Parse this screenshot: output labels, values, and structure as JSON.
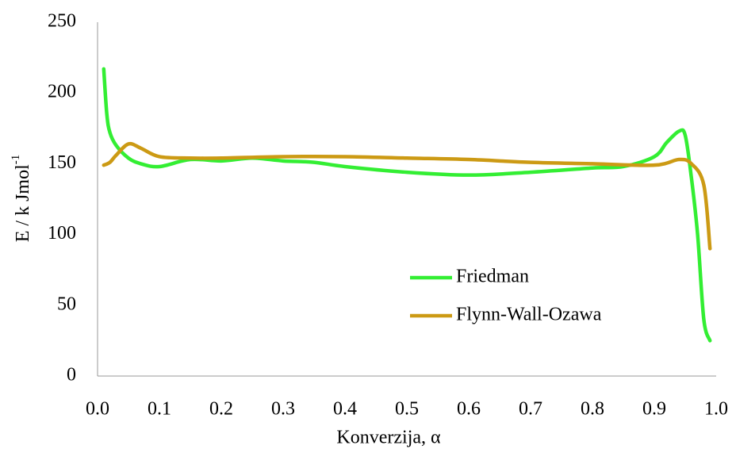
{
  "chart_data": {
    "type": "line",
    "x_label": "Konverzija, α",
    "y_label": "E / k Jmol",
    "y_label_superscript": "-1",
    "xlim": [
      0,
      1.0
    ],
    "xticks": [
      {
        "value": 0,
        "label": "0.0"
      },
      0.1,
      0.2,
      0.3,
      0.4,
      0.5,
      0.6,
      0.7,
      0.8,
      0.9,
      {
        "value": 1,
        "label": "1.0"
      }
    ],
    "ylim": [
      0,
      250
    ],
    "yticks": [
      0,
      50,
      100,
      150,
      200,
      250
    ],
    "grid": false,
    "legend": "lower right",
    "series": [
      {
        "name": "Friedman",
        "color": "#33ee33",
        "x": [
          0.01,
          0.015,
          0.02,
          0.03,
          0.05,
          0.07,
          0.1,
          0.15,
          0.2,
          0.25,
          0.3,
          0.35,
          0.4,
          0.5,
          0.6,
          0.7,
          0.8,
          0.85,
          0.9,
          0.92,
          0.94,
          0.95,
          0.96,
          0.97,
          0.98,
          0.99
        ],
        "values": [
          217,
          185,
          172,
          163,
          154,
          150,
          148,
          153,
          152,
          154,
          152,
          151,
          148,
          144,
          142,
          144,
          147,
          148,
          155,
          165,
          173,
          170,
          140,
          100,
          40,
          25
        ]
      },
      {
        "name": "Flynn-Wall-Ozawa",
        "color": "#cc9a14",
        "x": [
          0.01,
          0.02,
          0.03,
          0.05,
          0.07,
          0.1,
          0.15,
          0.2,
          0.3,
          0.4,
          0.5,
          0.6,
          0.7,
          0.8,
          0.9,
          0.94,
          0.96,
          0.98,
          0.99
        ],
        "values": [
          149,
          151,
          156,
          164,
          161,
          155,
          154,
          154,
          155,
          155,
          154,
          153,
          151,
          150,
          149,
          153,
          150,
          135,
          90
        ]
      }
    ]
  }
}
